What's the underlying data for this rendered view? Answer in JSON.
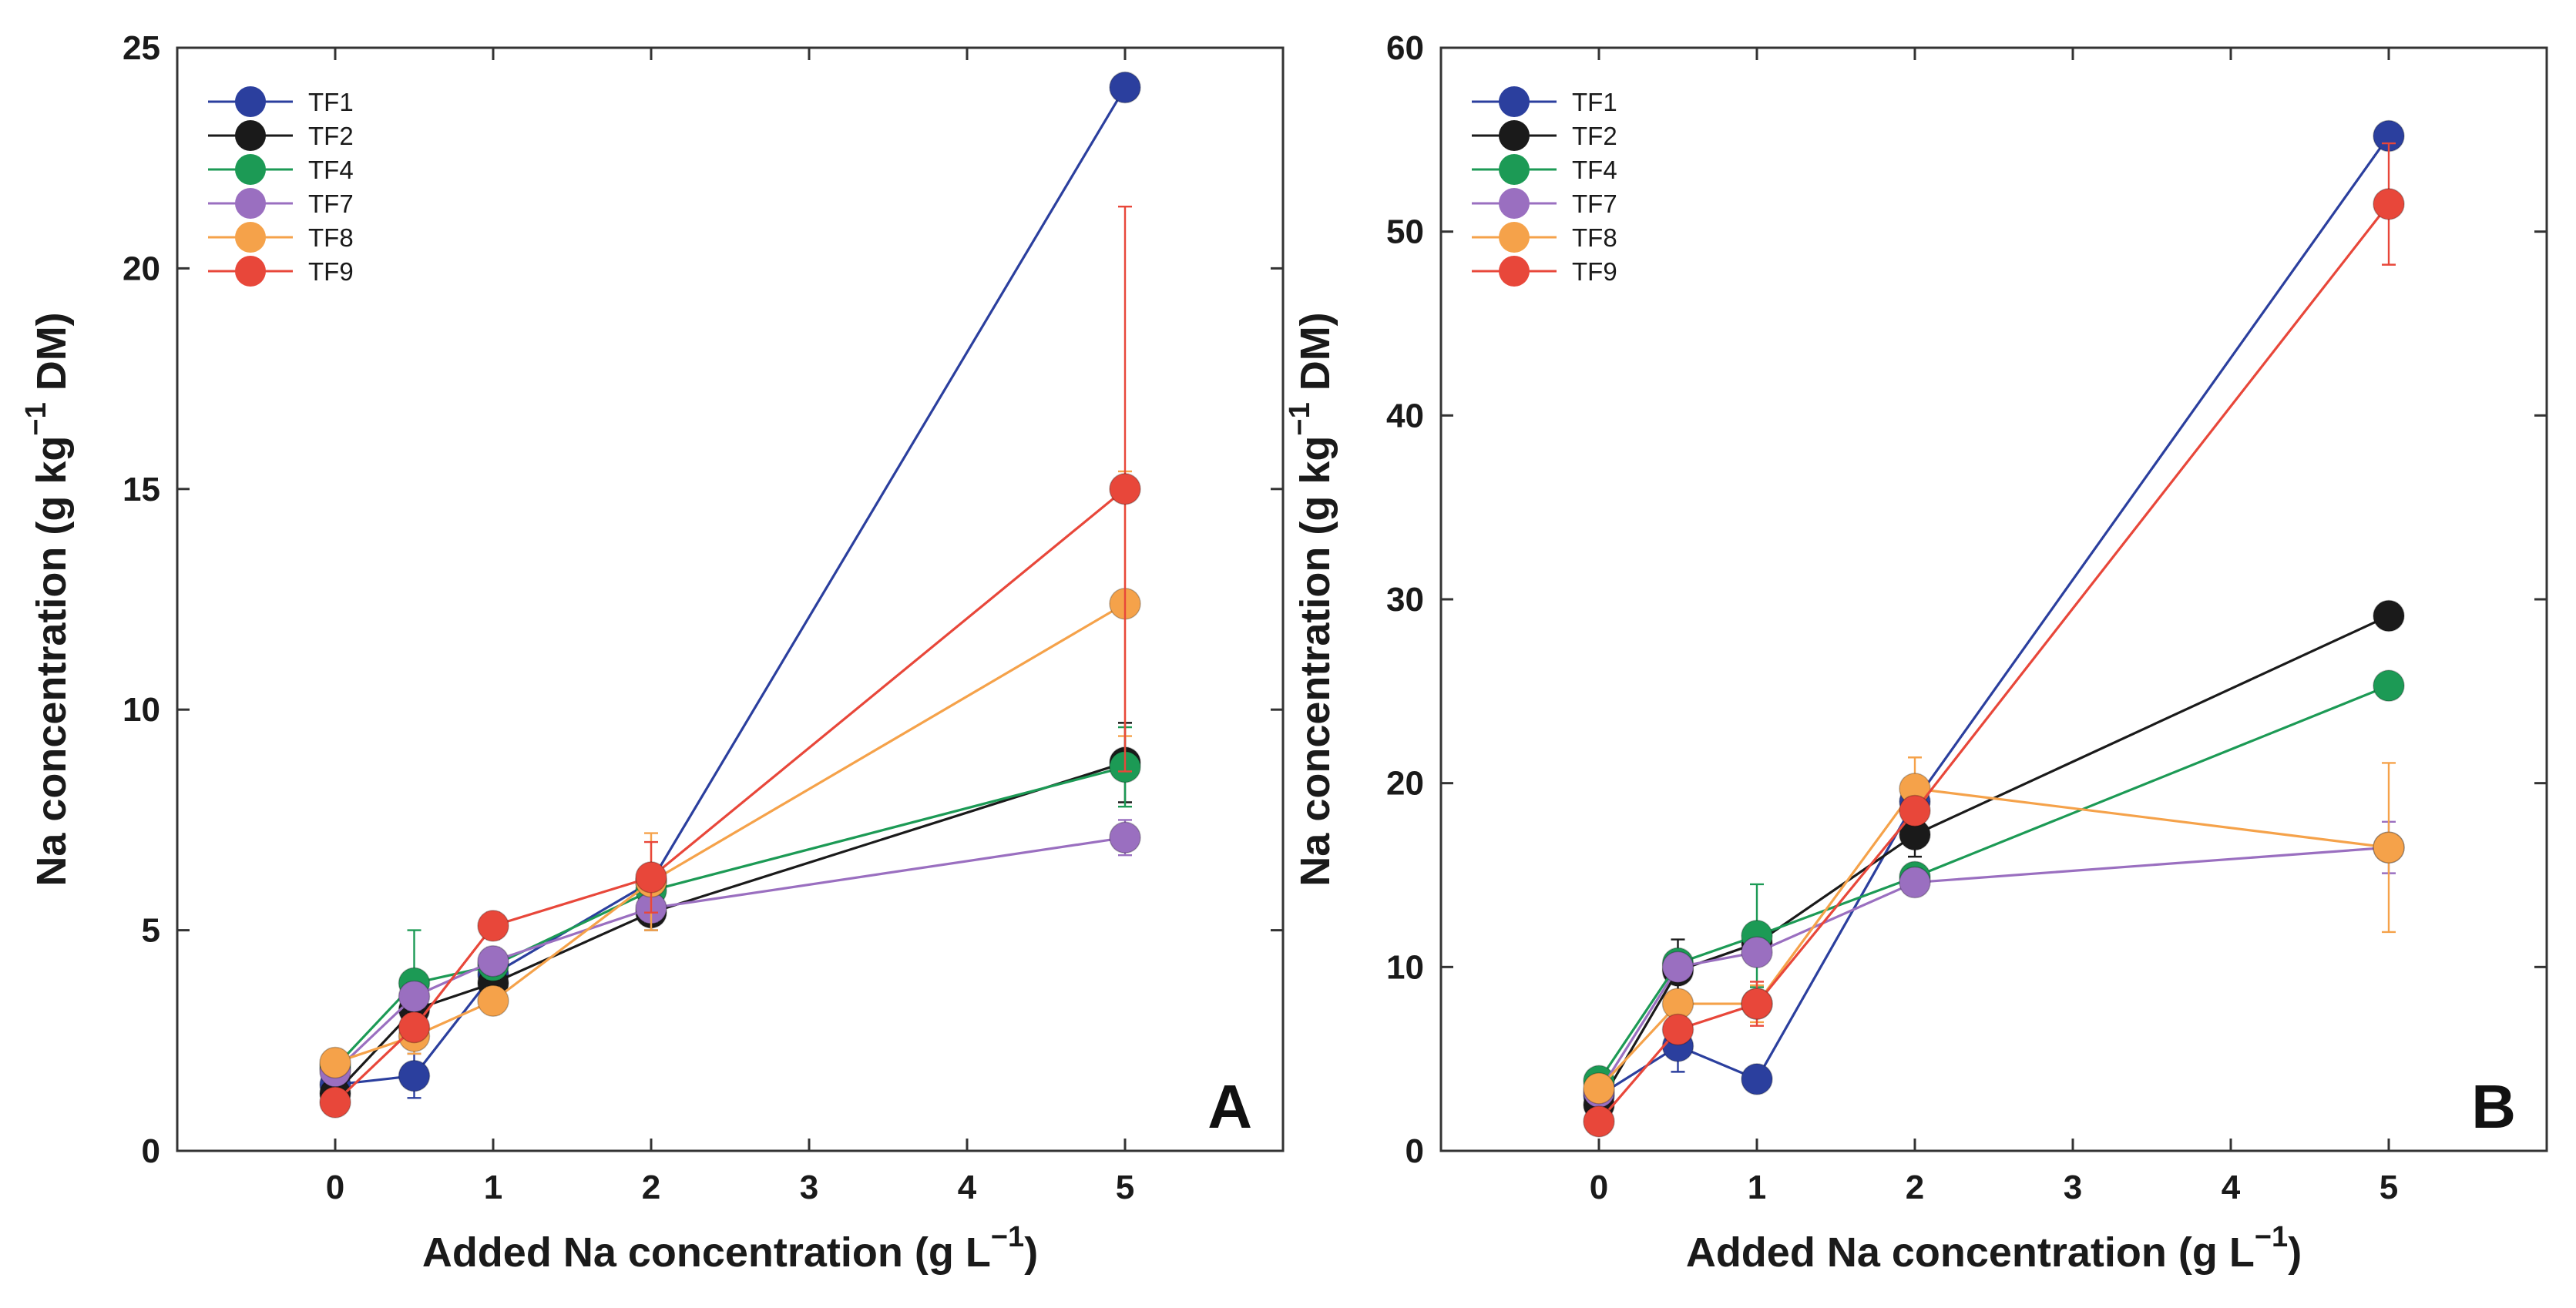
{
  "chart_data": [
    {
      "type": "line",
      "panel_label": "A",
      "xlabel": "Added Na concentration (g L",
      "xlabel_exp": "−1",
      "xlabel_end": ")",
      "ylabel": "Na concentration (g kg",
      "ylabel_exp": "−1",
      "ylabel_end": " DM)",
      "xlim": [
        -1,
        6
      ],
      "ylim": [
        0,
        25
      ],
      "x_ticks": [
        "0",
        "1",
        "2",
        "3",
        "4",
        "5"
      ],
      "y_ticks": [
        "0",
        "5",
        "10",
        "15",
        "20",
        "25"
      ],
      "legend_position": "top-left",
      "x": [
        0,
        0.5,
        1,
        2,
        5
      ],
      "series": [
        {
          "name": "TF1",
          "color": "#2b3f9e",
          "values": [
            1.5,
            1.7,
            4.0,
            6.1,
            24.1
          ],
          "errors": [
            0.2,
            0.5,
            0.3,
            0.3,
            0.2
          ]
        },
        {
          "name": "TF2",
          "color": "#1a1a1a",
          "values": [
            1.3,
            3.2,
            3.8,
            5.4,
            8.8
          ],
          "errors": [
            0.2,
            0.3,
            0.3,
            0.4,
            0.9
          ]
        },
        {
          "name": "TF4",
          "color": "#1c9a55",
          "values": [
            1.9,
            3.8,
            4.2,
            5.9,
            8.7
          ],
          "errors": [
            0.2,
            1.2,
            0.3,
            0.4,
            0.9
          ]
        },
        {
          "name": "TF7",
          "color": "#9a6fc0",
          "values": [
            1.8,
            3.5,
            4.3,
            5.5,
            7.1
          ],
          "errors": [
            0.2,
            0.3,
            0.3,
            0.3,
            0.4
          ]
        },
        {
          "name": "TF8",
          "color": "#f5a24a",
          "values": [
            2.0,
            2.6,
            3.4,
            6.1,
            12.4
          ],
          "errors": [
            0.2,
            0.4,
            0.3,
            1.1,
            3.0
          ]
        },
        {
          "name": "TF9",
          "color": "#e8473a",
          "values": [
            1.1,
            2.8,
            5.1,
            6.2,
            15.0
          ],
          "errors": [
            0.2,
            0.3,
            0.3,
            0.8,
            6.4
          ]
        }
      ]
    },
    {
      "type": "line",
      "panel_label": "B",
      "xlabel": "Added Na concentration (g L",
      "xlabel_exp": "−1",
      "xlabel_end": ")",
      "ylabel": "Na concentration (g kg",
      "ylabel_exp": "−1",
      "ylabel_end": " DM)",
      "xlim": [
        -1,
        6
      ],
      "ylim": [
        0,
        60
      ],
      "x_ticks": [
        "0",
        "1",
        "2",
        "3",
        "4",
        "5"
      ],
      "y_ticks": [
        "0",
        "10",
        "20",
        "30",
        "40",
        "50",
        "60"
      ],
      "legend_position": "top-left",
      "x": [
        0,
        0.5,
        1,
        2,
        5
      ],
      "series": [
        {
          "name": "TF1",
          "color": "#2b3f9e",
          "values": [
            3.0,
            5.7,
            3.9,
            19.0,
            55.2
          ],
          "errors": [
            0.3,
            1.4,
            0.3,
            0.8,
            0.5
          ]
        },
        {
          "name": "TF2",
          "color": "#1a1a1a",
          "values": [
            2.5,
            9.8,
            11.3,
            17.2,
            29.1
          ],
          "errors": [
            0.3,
            1.7,
            0.5,
            1.2,
            0.5
          ]
        },
        {
          "name": "TF4",
          "color": "#1c9a55",
          "values": [
            3.8,
            10.2,
            11.7,
            14.9,
            25.3
          ],
          "errors": [
            0.3,
            0.4,
            2.8,
            0.5,
            0.5
          ]
        },
        {
          "name": "TF7",
          "color": "#9a6fc0",
          "values": [
            3.2,
            10.0,
            10.8,
            14.6,
            16.5
          ],
          "errors": [
            0.3,
            0.4,
            0.6,
            0.5,
            1.4
          ]
        },
        {
          "name": "TF8",
          "color": "#f5a24a",
          "values": [
            3.4,
            8.0,
            8.0,
            19.7,
            16.5
          ],
          "errors": [
            0.3,
            0.6,
            1.0,
            1.7,
            4.6
          ]
        },
        {
          "name": "TF9",
          "color": "#e8473a",
          "values": [
            1.6,
            6.6,
            8.0,
            18.5,
            51.5
          ],
          "errors": [
            0.3,
            0.6,
            1.2,
            0.7,
            3.3
          ]
        }
      ]
    }
  ]
}
